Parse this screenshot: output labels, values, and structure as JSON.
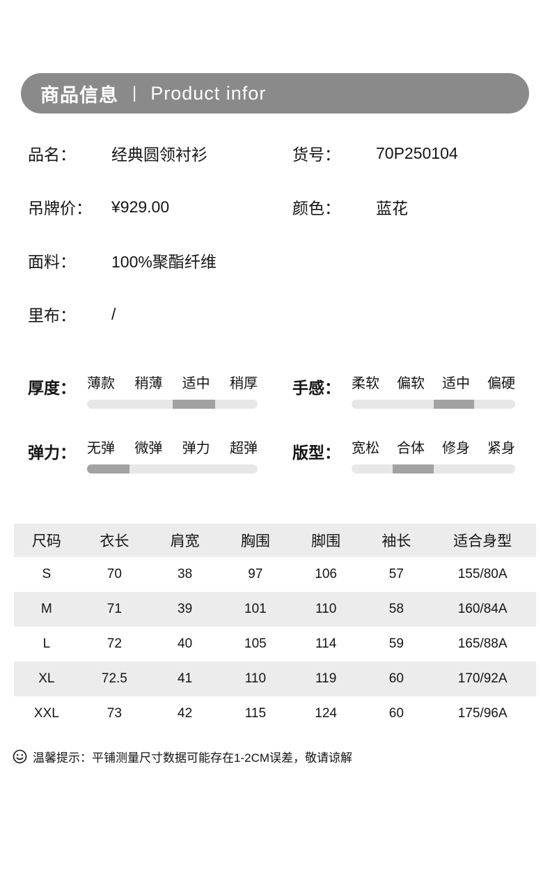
{
  "header": {
    "title_cn": "商品信息",
    "separator": "|",
    "title_en": "Product infor"
  },
  "info": {
    "product_name": {
      "label": "品名：",
      "value": "经典圆领衬衫"
    },
    "item_number": {
      "label": "货号：",
      "value": "70P250104"
    },
    "tag_price": {
      "label": "吊牌价：",
      "value": "¥929.00"
    },
    "color": {
      "label": "颜色：",
      "value": "蓝花"
    },
    "fabric": {
      "label": "面料：",
      "value": "100%聚酯纤维"
    },
    "lining": {
      "label": "里布：",
      "value": "/"
    }
  },
  "attributes": [
    {
      "name": "thickness",
      "label": "厚度：",
      "options": [
        "薄款",
        "稍薄",
        "适中",
        "稍厚"
      ],
      "active_index": 2,
      "active_option": "适中"
    },
    {
      "name": "hand-feel",
      "label": "手感：",
      "options": [
        "柔软",
        "偏软",
        "适中",
        "偏硬"
      ],
      "active_index": 2,
      "active_option": "适中"
    },
    {
      "name": "elasticity",
      "label": "弹力：",
      "options": [
        "无弹",
        "微弹",
        "弹力",
        "超弹"
      ],
      "active_index": 0,
      "active_option": "无弹"
    },
    {
      "name": "fit",
      "label": "版型：",
      "options": [
        "宽松",
        "合体",
        "修身",
        "紧身"
      ],
      "active_index": 1,
      "active_option": "合体"
    }
  ],
  "size_table": {
    "headers": [
      "尺码",
      "衣长",
      "肩宽",
      "胸围",
      "脚围",
      "袖长",
      "适合身型"
    ],
    "rows": [
      [
        "S",
        "70",
        "38",
        "97",
        "106",
        "57",
        "155/80A"
      ],
      [
        "M",
        "71",
        "39",
        "101",
        "110",
        "58",
        "160/84A"
      ],
      [
        "L",
        "72",
        "40",
        "105",
        "114",
        "59",
        "165/88A"
      ],
      [
        "XL",
        "72.5",
        "41",
        "110",
        "119",
        "60",
        "170/92A"
      ],
      [
        "XXL",
        "73",
        "42",
        "115",
        "124",
        "60",
        "175/96A"
      ]
    ]
  },
  "footer": {
    "icon": "smiley-icon",
    "text": "温馨提示：平铺测量尺寸数据可能存在1-2CM误差，敬请谅解"
  },
  "colors": {
    "header_bar": "#8a8a8a",
    "table_stripe": "#ececec",
    "slider_track": "#e7e7e7",
    "slider_active": "#a2a2a2",
    "text": "#141414"
  }
}
